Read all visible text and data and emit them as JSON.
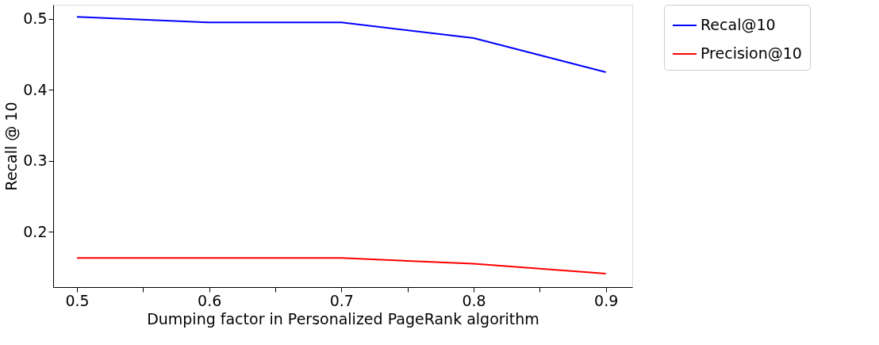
{
  "chart_data": {
    "type": "line",
    "xlabel": "Dumping factor in Personalized PageRank algorithm",
    "ylabel": "Recall @ 10",
    "x": [
      0.5,
      0.6,
      0.7,
      0.8,
      0.9
    ],
    "series": [
      {
        "name": "Recal@10",
        "color": "#0000ff",
        "values": [
          0.503,
          0.495,
          0.495,
          0.473,
          0.425
        ]
      },
      {
        "name": "Precision@10",
        "color": "#ff0000",
        "values": [
          0.163,
          0.163,
          0.163,
          0.155,
          0.141
        ]
      }
    ],
    "xlim": [
      0.482,
      0.92
    ],
    "xticks": [
      0.5,
      {
        "value": 0.55,
        "label": null
      },
      0.6,
      {
        "value": 0.65,
        "label": null
      },
      0.7,
      {
        "value": 0.75,
        "label": null
      },
      0.8,
      {
        "value": 0.85,
        "label": null
      },
      0.9
    ],
    "ylim": [
      0.122,
      0.52
    ],
    "yticks": [
      0.2,
      0.3,
      0.4,
      0.5
    ],
    "legend": "top right",
    "grid": false,
    "line_style": "solid",
    "marker": "none"
  }
}
